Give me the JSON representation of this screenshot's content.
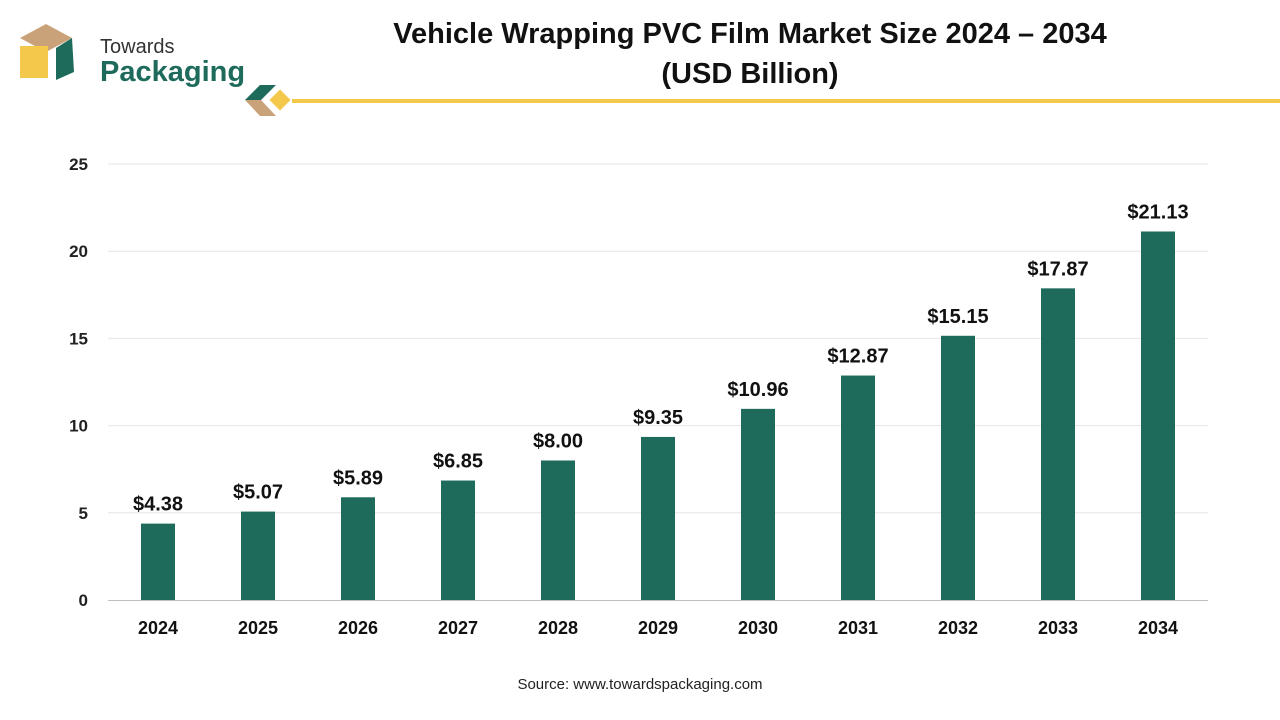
{
  "brand": {
    "line1": "Towards",
    "line2": "Packaging",
    "accent_color": "#1e6b5c",
    "highlight_color": "#f4c84a",
    "tan_color": "#c9a27a"
  },
  "title_line1": "Vehicle Wrapping PVC Film Market Size 2024 – 2034",
  "title_line2": "(USD Billion)",
  "source": "Source: www.towardspackaging.com",
  "chart_data": {
    "type": "bar",
    "categories": [
      "2024",
      "2025",
      "2026",
      "2027",
      "2028",
      "2029",
      "2030",
      "2031",
      "2032",
      "2033",
      "2034"
    ],
    "values": [
      4.38,
      5.07,
      5.89,
      6.85,
      8.0,
      9.35,
      10.96,
      12.87,
      15.15,
      17.87,
      21.13
    ],
    "value_labels": [
      "$4.38",
      "$5.07",
      "$5.89",
      "$6.85",
      "$8.00",
      "$9.35",
      "$10.96",
      "$12.87",
      "$15.15",
      "$17.87",
      "$21.13"
    ],
    "yticks": [
      "0",
      "5",
      "10",
      "15",
      "20",
      "25"
    ],
    "ylim": [
      0,
      25
    ],
    "bar_color": "#1e6b5c",
    "grid": true
  }
}
